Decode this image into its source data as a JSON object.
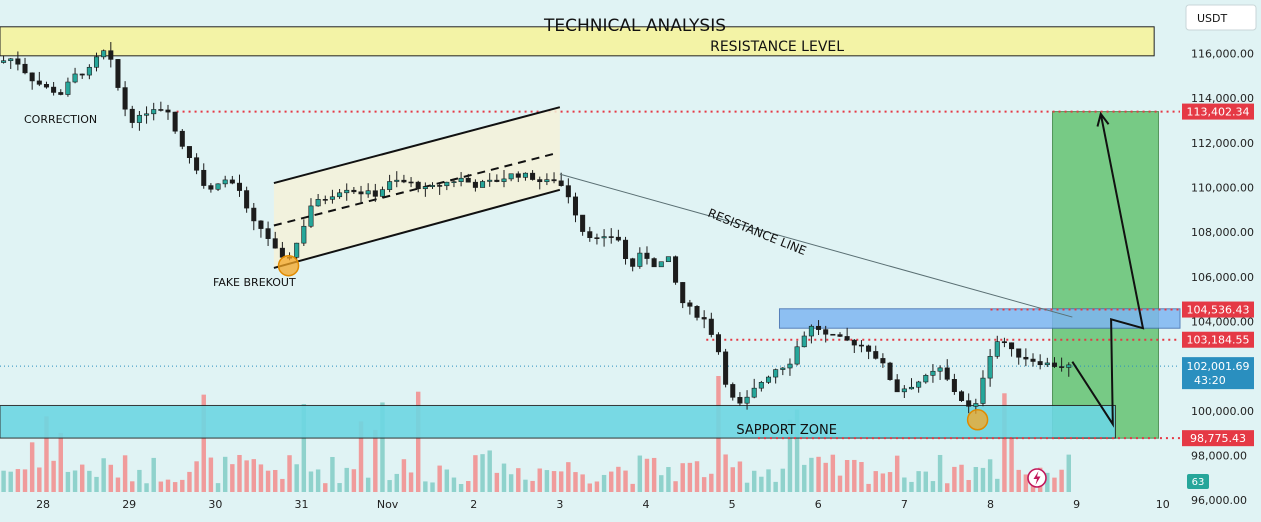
{
  "header": {
    "title": "TECHNICAL ANALYSIS",
    "currency_button": "USDT"
  },
  "colors": {
    "background": "#e0f3f4",
    "bull": "#26a69a",
    "bear": "#ef5350",
    "candle_ink": "#1c1c1c",
    "volume_up": "#80cbc4",
    "volume_down": "#f28b8b",
    "resistance_band": "#f3f3a6",
    "support_band": "#6dd7e3",
    "channel_fill": "#f4f1d8",
    "resistance_zone": "#7fb6f2",
    "target_box": "#5ec16a",
    "level_line": "#e53945",
    "current_price": "#2a8fbf",
    "volume_badge": "#26a69a"
  },
  "chart_data": {
    "type": "candlestick",
    "title": "TECHNICAL ANALYSIS",
    "quote_currency": "USDT",
    "x_axis": {
      "ticks": [
        {
          "label": "28",
          "day": 0
        },
        {
          "label": "29",
          "day": 1
        },
        {
          "label": "30",
          "day": 2
        },
        {
          "label": "31",
          "day": 3
        },
        {
          "label": "Nov",
          "day": 4
        },
        {
          "label": "2",
          "day": 5
        },
        {
          "label": "3",
          "day": 6
        },
        {
          "label": "4",
          "day": 7
        },
        {
          "label": "5",
          "day": 8
        },
        {
          "label": "6",
          "day": 9
        },
        {
          "label": "7",
          "day": 10
        },
        {
          "label": "8",
          "day": 11
        },
        {
          "label": "9",
          "day": 12
        },
        {
          "label": "10",
          "day": 13
        }
      ],
      "range": [
        -0.5,
        13.2
      ]
    },
    "y_axis": {
      "ticks": [
        "116,000.00",
        "114,000.00",
        "112,000.00",
        "110,000.00",
        "108,000.00",
        "106,000.00",
        "104,000.00",
        "100,000.00",
        "98,000.00",
        "96,000.00"
      ],
      "tick_values": [
        116000,
        114000,
        112000,
        110000,
        108000,
        106000,
        104000,
        100000,
        98000,
        96000
      ],
      "range": [
        95200,
        118400
      ]
    },
    "price_path": [
      [
        -0.5,
        115600
      ],
      [
        -0.3,
        115800
      ],
      [
        -0.1,
        114900
      ],
      [
        0.05,
        114500
      ],
      [
        0.25,
        114200
      ],
      [
        0.4,
        115000
      ],
      [
        0.6,
        115300
      ],
      [
        0.72,
        116200
      ],
      [
        0.85,
        115500
      ],
      [
        0.95,
        113800
      ],
      [
        1.1,
        112900
      ],
      [
        1.3,
        113600
      ],
      [
        1.5,
        113500
      ],
      [
        1.6,
        112200
      ],
      [
        1.8,
        111100
      ],
      [
        1.95,
        109700
      ],
      [
        2.1,
        110400
      ],
      [
        2.3,
        110100
      ],
      [
        2.45,
        108500
      ],
      [
        2.6,
        108100
      ],
      [
        2.75,
        107100
      ],
      [
        2.85,
        106600
      ],
      [
        3.0,
        107600
      ],
      [
        3.15,
        109200
      ],
      [
        3.35,
        109600
      ],
      [
        3.55,
        110000
      ],
      [
        3.7,
        109800
      ],
      [
        3.9,
        109700
      ],
      [
        4.1,
        110300
      ],
      [
        4.3,
        110200
      ],
      [
        4.5,
        109900
      ],
      [
        4.7,
        110200
      ],
      [
        4.9,
        110400
      ],
      [
        5.05,
        110100
      ],
      [
        5.3,
        110300
      ],
      [
        5.5,
        110600
      ],
      [
        5.7,
        110500
      ],
      [
        5.85,
        110200
      ],
      [
        6.0,
        110400
      ],
      [
        6.15,
        109600
      ],
      [
        6.3,
        108100
      ],
      [
        6.5,
        107600
      ],
      [
        6.7,
        107900
      ],
      [
        6.85,
        106300
      ],
      [
        7.0,
        107100
      ],
      [
        7.15,
        106500
      ],
      [
        7.3,
        106800
      ],
      [
        7.45,
        104900
      ],
      [
        7.6,
        104400
      ],
      [
        7.75,
        104000
      ],
      [
        7.9,
        102500
      ],
      [
        8.0,
        100700
      ],
      [
        8.15,
        100200
      ],
      [
        8.35,
        101200
      ],
      [
        8.55,
        101900
      ],
      [
        8.7,
        102100
      ],
      [
        8.85,
        103300
      ],
      [
        9.0,
        103900
      ],
      [
        9.1,
        103400
      ],
      [
        9.3,
        103200
      ],
      [
        9.5,
        103000
      ],
      [
        9.65,
        102700
      ],
      [
        9.8,
        102000
      ],
      [
        9.95,
        100900
      ],
      [
        10.1,
        101100
      ],
      [
        10.3,
        101500
      ],
      [
        10.45,
        101900
      ],
      [
        10.6,
        101000
      ],
      [
        10.75,
        100300
      ],
      [
        10.85,
        99900
      ],
      [
        10.95,
        101500
      ],
      [
        11.05,
        102700
      ],
      [
        11.15,
        103300
      ],
      [
        11.3,
        102600
      ],
      [
        11.5,
        102300
      ],
      [
        11.7,
        102100
      ],
      [
        11.85,
        102000
      ],
      [
        11.95,
        102000
      ]
    ],
    "current_price": {
      "value": "102,001.69",
      "countdown": "43:20",
      "numeric": 102001.69
    },
    "levels": [
      {
        "label": "113,402.34",
        "value": 113402.34,
        "from_day": 1.55
      },
      {
        "label": "104,536.43",
        "value": 104536.43,
        "from_day": 11.0
      },
      {
        "label": "103,184.55",
        "value": 103184.55,
        "from_day": 7.7
      },
      {
        "label": "98,775.43",
        "value": 98775.43,
        "from_day": 8.3
      }
    ],
    "zones": {
      "resistance_level": {
        "label": "RESISTANCE LEVEL",
        "low": 115900,
        "high": 117200,
        "x0": -0.5,
        "x1": 12.9
      },
      "support_zone": {
        "label": "SAPPORT ZONE",
        "low": 98780,
        "high": 100240,
        "x0": -0.5,
        "x1": 12.45
      },
      "resistance_block": {
        "low": 103700,
        "high": 104570,
        "x0": 8.55,
        "x1": 13.2
      },
      "target_box": {
        "low": 98775.43,
        "high": 113402.34,
        "x0": 11.72,
        "x1": 12.95
      }
    },
    "channel": {
      "upper": [
        [
          2.68,
          110200
        ],
        [
          6.0,
          113600
        ]
      ],
      "lower": [
        [
          2.68,
          106400
        ],
        [
          6.0,
          109900
        ]
      ],
      "mid": [
        [
          2.68,
          108300
        ],
        [
          5.92,
          111500
        ]
      ]
    },
    "resistance_line": [
      [
        6.0,
        110600
      ],
      [
        11.95,
        104200
      ]
    ],
    "projection": [
      [
        11.95,
        102200
      ],
      [
        12.42,
        99400
      ],
      [
        12.4,
        104100
      ],
      [
        12.77,
        103700
      ],
      [
        12.28,
        113300
      ]
    ],
    "markers": [
      {
        "day": 2.85,
        "value": 106500
      },
      {
        "day": 10.85,
        "value": 99600
      }
    ],
    "annotations": [
      {
        "text": "CORRECTION",
        "day": 0.1,
        "value": 112800
      },
      {
        "text": "FAKE BREKOUT",
        "day": 2.5,
        "value": 105300
      },
      {
        "text": "RESISTANCE LINE",
        "day": 8.8,
        "value": 107600
      }
    ],
    "volume_badge": "63",
    "volume_axis_label": "96,000.00"
  }
}
